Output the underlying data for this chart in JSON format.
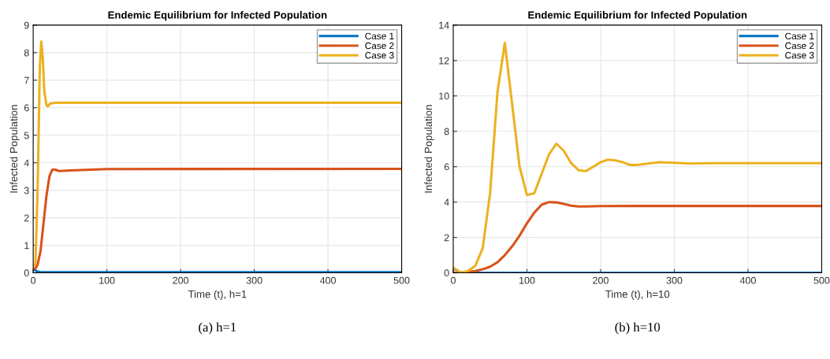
{
  "chart_data": [
    {
      "type": "line",
      "title": "Endemic Equilibrium for Infected Population",
      "xlabel": "Time (t), h=1",
      "ylabel": "Infected Population",
      "annotations": [
        "(a) h=1"
      ],
      "xlim": [
        0,
        500
      ],
      "ylim": [
        0,
        9
      ],
      "xticks": [
        0,
        100,
        200,
        300,
        400,
        500
      ],
      "yticks": [
        0,
        1,
        2,
        3,
        4,
        5,
        6,
        7,
        8,
        9
      ],
      "grid": true,
      "legend": "top right",
      "series": [
        {
          "name": "Case 1",
          "color": "#0072bd",
          "x": [
            0,
            5,
            10,
            500
          ],
          "values": [
            0.15,
            0.05,
            0.02,
            0.02
          ]
        },
        {
          "name": "Case 2",
          "color": "#d95319",
          "x": [
            0,
            3,
            6,
            10,
            14,
            18,
            22,
            26,
            30,
            35,
            50,
            100,
            500
          ],
          "values": [
            0.15,
            0.15,
            0.3,
            0.8,
            1.8,
            2.8,
            3.5,
            3.75,
            3.75,
            3.7,
            3.72,
            3.77,
            3.78
          ]
        },
        {
          "name": "Case 3",
          "color": "#edb120",
          "x": [
            0,
            3,
            6,
            9,
            11,
            13,
            15,
            18,
            20,
            23,
            30,
            500
          ],
          "values": [
            0.25,
            0.3,
            3,
            7.5,
            8.4,
            7.8,
            6.6,
            6.1,
            6.05,
            6.15,
            6.18,
            6.18
          ]
        }
      ]
    },
    {
      "type": "line",
      "title": "Endemic Equilibrium for Infected Population",
      "xlabel": "Time (t), h=10",
      "ylabel": "Infected Population",
      "annotations": [
        "(b) h=10"
      ],
      "xlim": [
        0,
        500
      ],
      "ylim": [
        0,
        14
      ],
      "xticks": [
        0,
        100,
        200,
        300,
        400,
        500
      ],
      "yticks": [
        0,
        2,
        4,
        6,
        8,
        10,
        12,
        14
      ],
      "grid": true,
      "legend": "top right",
      "series": [
        {
          "name": "Case 1",
          "color": "#0072bd",
          "x": [
            0,
            10,
            20,
            500
          ],
          "values": [
            0.25,
            0.02,
            0,
            0
          ]
        },
        {
          "name": "Case 2",
          "color": "#d95319",
          "x": [
            0,
            10,
            20,
            30,
            40,
            50,
            60,
            70,
            80,
            90,
            100,
            110,
            120,
            130,
            140,
            150,
            160,
            170,
            180,
            200,
            250,
            500
          ],
          "values": [
            0,
            0,
            0.05,
            0.1,
            0.2,
            0.35,
            0.6,
            1.0,
            1.5,
            2.1,
            2.8,
            3.4,
            3.85,
            4.0,
            3.98,
            3.9,
            3.8,
            3.75,
            3.75,
            3.77,
            3.78,
            3.78
          ]
        },
        {
          "name": "Case 3",
          "color": "#edb120",
          "x": [
            0,
            10,
            20,
            30,
            40,
            50,
            60,
            70,
            80,
            90,
            100,
            110,
            120,
            130,
            140,
            150,
            160,
            170,
            180,
            190,
            200,
            210,
            220,
            230,
            240,
            250,
            260,
            280,
            300,
            320,
            350,
            400,
            500
          ],
          "values": [
            0.3,
            0.0,
            0.1,
            0.4,
            1.4,
            4.5,
            10.2,
            13,
            9.5,
            6,
            4.4,
            4.5,
            5.6,
            6.7,
            7.3,
            6.9,
            6.2,
            5.8,
            5.75,
            6,
            6.25,
            6.4,
            6.35,
            6.25,
            6.1,
            6.1,
            6.15,
            6.25,
            6.22,
            6.18,
            6.2,
            6.2,
            6.2
          ]
        }
      ]
    }
  ]
}
